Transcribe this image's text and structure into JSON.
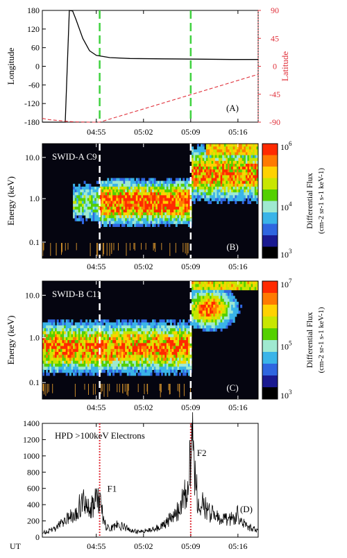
{
  "colors": {
    "axis": "#000000",
    "latitude": "#e0303a",
    "green_marker": "#3fd23f",
    "dashed_marker": "#ffffff",
    "hpd_marker": "#e0303a",
    "spectro_bg": "#050510",
    "colorbar_a": [
      "#ff2a00",
      "#ff7a00",
      "#ffd200",
      "#c8e600",
      "#54d000",
      "#9fe9d0",
      "#3ab4e8",
      "#2f66e0",
      "#1a1a90",
      "#000000"
    ],
    "colorbar_b": [
      "#ff2a00",
      "#ff7a00",
      "#ffd200",
      "#c8e600",
      "#54d000",
      "#9fe9d0",
      "#3ab4e8",
      "#2f66e0",
      "#1a1a90",
      "#000000"
    ]
  },
  "chart_data": [
    {
      "panel": "A",
      "type": "line",
      "tag": "(A)",
      "xticks": [
        "04:55",
        "05:02",
        "05:09",
        "05:16"
      ],
      "ylabel": "Longitude",
      "yticks": [
        "180",
        "120",
        "60",
        "0",
        "-60",
        "-120",
        "-180"
      ],
      "ylim": [
        -180,
        180
      ],
      "y2label": "Latitude",
      "y2ticks": [
        "90",
        "45",
        "0",
        "-45",
        "-90"
      ],
      "y2lim": [
        -90,
        90
      ],
      "series": [
        {
          "axis": "left",
          "style": "solid",
          "x": [
            "04:47",
            "04:48",
            "04:49",
            "04:50",
            "04:50.4",
            "04:51",
            "04:51.5",
            "04:52",
            "04:53",
            "04:54",
            "04:55",
            "04:57",
            "05:00",
            "05:05",
            "05:10",
            "05:15",
            "05:19"
          ],
          "y": [
            -180,
            -180,
            -180,
            -180,
            -180,
            180,
            178,
            150,
            90,
            50,
            35,
            28,
            25,
            24,
            23,
            22,
            22
          ]
        },
        {
          "axis": "right",
          "style": "dashed",
          "x": [
            "04:47",
            "04:48",
            "04:49",
            "04:50",
            "04:51",
            "04:52",
            "04:53",
            "04:54",
            "04:55",
            "04:55.5",
            "05:19"
          ],
          "y": [
            -84,
            -86,
            -87,
            -88,
            -89,
            -89.5,
            -89.8,
            -90,
            -90,
            -90,
            -13
          ]
        }
      ],
      "markers": [
        {
          "x": "04:55.5",
          "style": "dashed-green"
        },
        {
          "x": "05:09",
          "style": "dashed-green"
        }
      ]
    },
    {
      "panel": "B",
      "type": "heatmap",
      "title": "SWID-A C9",
      "tag": "(B)",
      "xticks": [
        "04:55",
        "05:02",
        "05:09",
        "05:16"
      ],
      "ylabel": "Energy (keV)",
      "yticks": [
        "10.0",
        "1.0",
        "0.1"
      ],
      "colorbar": {
        "label": "Differential Flux",
        "unit": "(cm-2 sr-1 s-1 keV-1)",
        "ticks": [
          {
            "base": "10",
            "exp": "6"
          },
          {
            "base": "10",
            "exp": "4"
          },
          {
            "base": "10",
            "exp": "3"
          }
        ]
      },
      "markers": [
        {
          "x": "04:55.5",
          "style": "dashed-white"
        },
        {
          "x": "05:09",
          "style": "dashed-white"
        }
      ]
    },
    {
      "panel": "C",
      "type": "heatmap",
      "title": "SWID-B C11",
      "tag": "(C)",
      "xticks": [
        "04:55",
        "05:02",
        "05:09",
        "05:16"
      ],
      "ylabel": "Energy (keV)",
      "yticks": [
        "10.0",
        "1.0",
        "0.1"
      ],
      "colorbar": {
        "label": "Differential Flux",
        "unit": "(cm-2 sr-1 s-1 keV-1)",
        "ticks": [
          {
            "base": "10",
            "exp": "7"
          },
          {
            "base": "10",
            "exp": "5"
          },
          {
            "base": "10",
            "exp": "3"
          }
        ]
      },
      "markers": [
        {
          "x": "04:55.5",
          "style": "dashed-white"
        },
        {
          "x": "05:09",
          "style": "dashed-white"
        }
      ]
    },
    {
      "panel": "D",
      "type": "line",
      "title": "HPD >100keV Electrons",
      "tag": "(D)",
      "xaxis_label": "UT",
      "xticks": [
        "04:55",
        "05:02",
        "05:09",
        "05:16"
      ],
      "yticks": [
        "1400",
        "1200",
        "1000",
        "800",
        "600",
        "400",
        "200",
        "0"
      ],
      "ylim": [
        0,
        1400
      ],
      "series": [
        {
          "x": [
            "04:47",
            "04:48",
            "04:49",
            "04:50",
            "04:51",
            "04:52",
            "04:53",
            "04:54",
            "04:54.5",
            "04:55",
            "04:55.5",
            "04:56",
            "04:56.5",
            "04:57",
            "04:58",
            "04:59",
            "05:00",
            "05:01",
            "05:02",
            "05:03",
            "05:04",
            "05:05",
            "05:06",
            "05:07",
            "05:07.5",
            "05:08",
            "05:08.5",
            "05:09",
            "05:09.3",
            "05:10",
            "05:11",
            "05:12",
            "05:13",
            "05:14",
            "05:15",
            "05:16",
            "05:17",
            "05:18",
            "05:19"
          ],
          "y": [
            60,
            80,
            120,
            200,
            280,
            350,
            480,
            380,
            420,
            480,
            500,
            260,
            140,
            100,
            160,
            140,
            100,
            70,
            80,
            90,
            120,
            160,
            240,
            330,
            420,
            520,
            700,
            1100,
            1200,
            520,
            400,
            310,
            270,
            230,
            250,
            300,
            160,
            120,
            80
          ]
        }
      ],
      "markers": [
        {
          "x": "04:55.5",
          "style": "dotted-red"
        },
        {
          "x": "05:09",
          "style": "dotted-red"
        }
      ],
      "annotations": [
        {
          "text": "F1",
          "x": "04:56",
          "y": 560
        },
        {
          "text": "F2",
          "x": "05:09.3",
          "y": 1000
        }
      ]
    }
  ]
}
